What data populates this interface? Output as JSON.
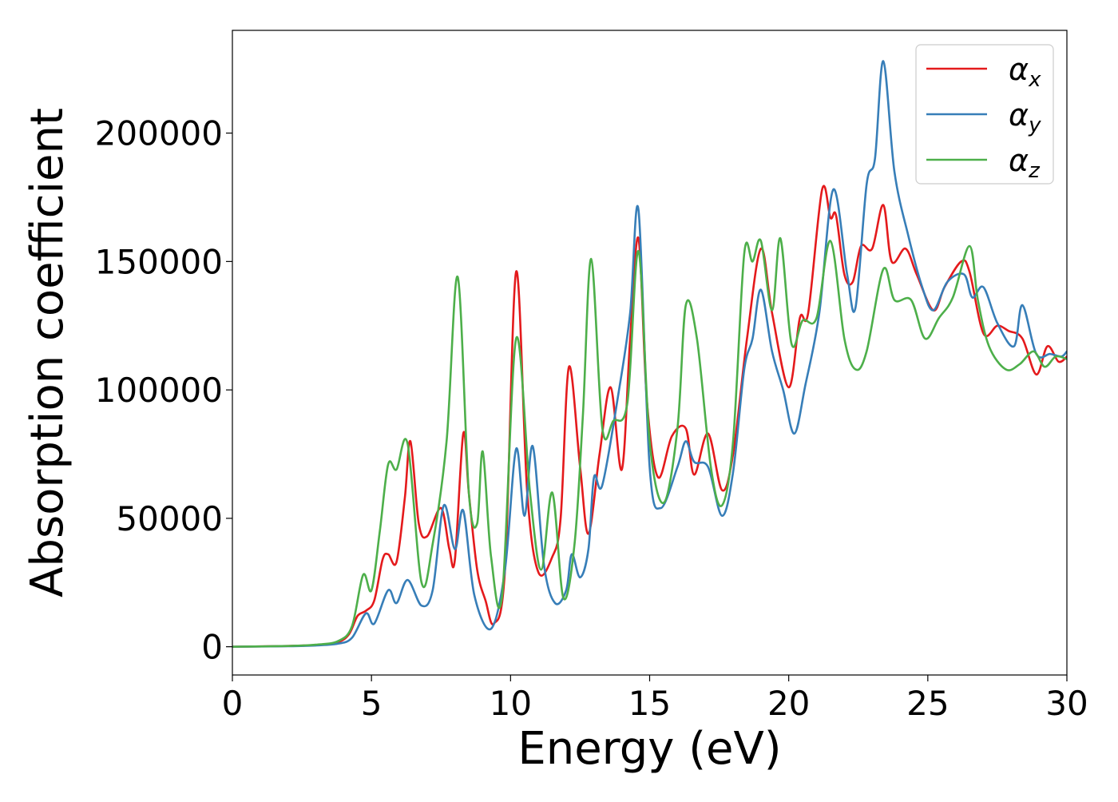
{
  "chart_data": {
    "type": "line",
    "title": "",
    "xlabel": "Energy (eV)",
    "ylabel": "Absorption coefficient",
    "xlim": [
      0,
      30
    ],
    "ylim": [
      -11000,
      240000
    ],
    "xticks": [
      0,
      5,
      10,
      15,
      20,
      25,
      30
    ],
    "xtick_labels": [
      "0",
      "5",
      "10",
      "15",
      "20",
      "25",
      "30"
    ],
    "yticks": [
      0,
      50000,
      100000,
      150000,
      200000
    ],
    "ytick_labels": [
      "0",
      "50000",
      "100000",
      "150000",
      "200000"
    ],
    "grid": false,
    "legend_position": "top-right",
    "series": [
      {
        "name": "αx",
        "label_main": "α",
        "label_sub": "x",
        "color": "#e41a1c",
        "points": [
          [
            0,
            0
          ],
          [
            2,
            300
          ],
          [
            3,
            700
          ],
          [
            3.8,
            1800
          ],
          [
            4.2,
            5000
          ],
          [
            4.5,
            12000
          ],
          [
            4.8,
            14000
          ],
          [
            5.1,
            18000
          ],
          [
            5.4,
            34000
          ],
          [
            5.6,
            36000
          ],
          [
            5.9,
            33000
          ],
          [
            6.2,
            58000
          ],
          [
            6.4,
            80000
          ],
          [
            6.7,
            48000
          ],
          [
            7.0,
            43000
          ],
          [
            7.5,
            54000
          ],
          [
            7.8,
            38000
          ],
          [
            8.0,
            34000
          ],
          [
            8.3,
            83000
          ],
          [
            8.5,
            60000
          ],
          [
            8.8,
            30000
          ],
          [
            9.1,
            18000
          ],
          [
            9.4,
            9000
          ],
          [
            9.8,
            30000
          ],
          [
            10.2,
            146000
          ],
          [
            10.6,
            60000
          ],
          [
            11.0,
            29000
          ],
          [
            11.5,
            35000
          ],
          [
            11.8,
            50000
          ],
          [
            12.1,
            109000
          ],
          [
            12.5,
            70000
          ],
          [
            12.8,
            44000
          ],
          [
            13.2,
            75000
          ],
          [
            13.6,
            101000
          ],
          [
            14.0,
            69000
          ],
          [
            14.3,
            120000
          ],
          [
            14.6,
            159000
          ],
          [
            14.9,
            96000
          ],
          [
            15.3,
            66000
          ],
          [
            15.8,
            82000
          ],
          [
            16.3,
            85000
          ],
          [
            16.6,
            67000
          ],
          [
            17.1,
            83000
          ],
          [
            17.6,
            61000
          ],
          [
            18.0,
            75000
          ],
          [
            18.5,
            120000
          ],
          [
            19.0,
            155000
          ],
          [
            19.4,
            130000
          ],
          [
            20.0,
            101000
          ],
          [
            20.4,
            128000
          ],
          [
            20.7,
            130000
          ],
          [
            21.2,
            178000
          ],
          [
            21.5,
            167000
          ],
          [
            21.7,
            168000
          ],
          [
            22.0,
            145000
          ],
          [
            22.3,
            142000
          ],
          [
            22.6,
            156000
          ],
          [
            23.0,
            155000
          ],
          [
            23.4,
            172000
          ],
          [
            23.7,
            150000
          ],
          [
            24.2,
            155000
          ],
          [
            24.6,
            145000
          ],
          [
            25.2,
            131000
          ],
          [
            25.6,
            140000
          ],
          [
            26.2,
            150000
          ],
          [
            26.5,
            146000
          ],
          [
            27.0,
            122000
          ],
          [
            27.5,
            125000
          ],
          [
            27.9,
            123000
          ],
          [
            28.4,
            120000
          ],
          [
            28.9,
            106000
          ],
          [
            29.3,
            117000
          ],
          [
            29.7,
            111000
          ],
          [
            30,
            113000
          ]
        ]
      },
      {
        "name": "αy",
        "label_main": "α",
        "label_sub": "y",
        "color": "#377eb8",
        "points": [
          [
            0,
            0
          ],
          [
            2,
            200
          ],
          [
            3,
            500
          ],
          [
            3.8,
            1200
          ],
          [
            4.3,
            3500
          ],
          [
            4.8,
            13000
          ],
          [
            5.1,
            9000
          ],
          [
            5.6,
            22000
          ],
          [
            5.9,
            17000
          ],
          [
            6.3,
            26000
          ],
          [
            6.8,
            16000
          ],
          [
            7.2,
            22000
          ],
          [
            7.6,
            55000
          ],
          [
            8.0,
            38000
          ],
          [
            8.3,
            53000
          ],
          [
            8.7,
            20000
          ],
          [
            9.3,
            7000
          ],
          [
            9.8,
            30000
          ],
          [
            10.2,
            77000
          ],
          [
            10.5,
            51000
          ],
          [
            10.8,
            78000
          ],
          [
            11.2,
            32000
          ],
          [
            11.6,
            17000
          ],
          [
            12.0,
            22000
          ],
          [
            12.2,
            36000
          ],
          [
            12.5,
            27000
          ],
          [
            12.8,
            38000
          ],
          [
            13.0,
            66000
          ],
          [
            13.3,
            63000
          ],
          [
            13.9,
            100000
          ],
          [
            14.3,
            130000
          ],
          [
            14.6,
            170000
          ],
          [
            15.0,
            70000
          ],
          [
            15.4,
            54000
          ],
          [
            16.0,
            70000
          ],
          [
            16.3,
            80000
          ],
          [
            16.6,
            72000
          ],
          [
            17.1,
            70000
          ],
          [
            17.6,
            51000
          ],
          [
            18.0,
            68000
          ],
          [
            18.4,
            108000
          ],
          [
            18.7,
            120000
          ],
          [
            19.0,
            139000
          ],
          [
            19.4,
            115000
          ],
          [
            19.8,
            100000
          ],
          [
            20.2,
            83000
          ],
          [
            20.6,
            102000
          ],
          [
            21.1,
            130000
          ],
          [
            21.6,
            178000
          ],
          [
            22.1,
            145000
          ],
          [
            22.4,
            132000
          ],
          [
            22.8,
            180000
          ],
          [
            23.1,
            190000
          ],
          [
            23.4,
            228000
          ],
          [
            23.8,
            185000
          ],
          [
            24.3,
            160000
          ],
          [
            24.8,
            140000
          ],
          [
            25.2,
            131000
          ],
          [
            25.7,
            142000
          ],
          [
            26.3,
            145000
          ],
          [
            26.6,
            136000
          ],
          [
            27.0,
            140000
          ],
          [
            27.5,
            126000
          ],
          [
            28.1,
            117000
          ],
          [
            28.4,
            133000
          ],
          [
            28.9,
            114000
          ],
          [
            29.4,
            114000
          ],
          [
            29.8,
            113000
          ],
          [
            30,
            115000
          ]
        ]
      },
      {
        "name": "αz",
        "label_main": "α",
        "label_sub": "z",
        "color": "#4daf4a",
        "points": [
          [
            0,
            0
          ],
          [
            2,
            300
          ],
          [
            3,
            800
          ],
          [
            3.8,
            2200
          ],
          [
            4.3,
            8000
          ],
          [
            4.7,
            28000
          ],
          [
            5.0,
            22000
          ],
          [
            5.3,
            45000
          ],
          [
            5.6,
            71000
          ],
          [
            5.9,
            69000
          ],
          [
            6.3,
            79000
          ],
          [
            6.8,
            25000
          ],
          [
            7.2,
            40000
          ],
          [
            7.7,
            80000
          ],
          [
            8.1,
            144000
          ],
          [
            8.5,
            60000
          ],
          [
            8.8,
            48000
          ],
          [
            9.0,
            76000
          ],
          [
            9.3,
            35000
          ],
          [
            9.7,
            20000
          ],
          [
            10.2,
            120000
          ],
          [
            10.7,
            60000
          ],
          [
            11.1,
            30000
          ],
          [
            11.5,
            60000
          ],
          [
            11.9,
            19000
          ],
          [
            12.3,
            40000
          ],
          [
            12.6,
            90000
          ],
          [
            12.9,
            151000
          ],
          [
            13.3,
            85000
          ],
          [
            13.7,
            88000
          ],
          [
            14.2,
            95000
          ],
          [
            14.6,
            154000
          ],
          [
            15.0,
            80000
          ],
          [
            15.5,
            56000
          ],
          [
            16.0,
            85000
          ],
          [
            16.3,
            133000
          ],
          [
            16.7,
            120000
          ],
          [
            17.2,
            70000
          ],
          [
            17.6,
            55000
          ],
          [
            18.0,
            80000
          ],
          [
            18.4,
            153000
          ],
          [
            18.7,
            150000
          ],
          [
            19.0,
            158000
          ],
          [
            19.4,
            131000
          ],
          [
            19.7,
            159000
          ],
          [
            20.1,
            118000
          ],
          [
            20.5,
            127000
          ],
          [
            21.0,
            128000
          ],
          [
            21.5,
            158000
          ],
          [
            22.0,
            120000
          ],
          [
            22.4,
            108000
          ],
          [
            22.8,
            115000
          ],
          [
            23.4,
            147000
          ],
          [
            23.8,
            135000
          ],
          [
            24.4,
            135000
          ],
          [
            24.9,
            120000
          ],
          [
            25.4,
            128000
          ],
          [
            25.9,
            136000
          ],
          [
            26.5,
            156000
          ],
          [
            26.8,
            135000
          ],
          [
            27.2,
            117000
          ],
          [
            27.8,
            108000
          ],
          [
            28.3,
            110000
          ],
          [
            28.8,
            115000
          ],
          [
            29.2,
            109000
          ],
          [
            29.6,
            113000
          ],
          [
            30,
            112000
          ]
        ]
      }
    ]
  }
}
